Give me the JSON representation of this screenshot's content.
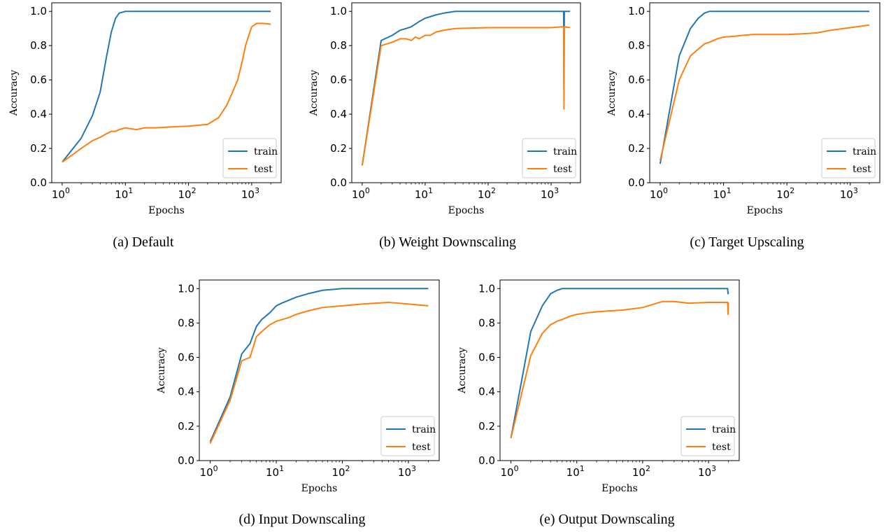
{
  "colors": {
    "train": "#1f77b4",
    "test": "#ff7f0e"
  },
  "chart_data": [
    {
      "type": "line",
      "caption": "(a) Default",
      "xlabel": "Epochs",
      "ylabel": "Accuracy",
      "xscale": "log",
      "xlim": [
        1,
        2000
      ],
      "ylim": [
        0,
        1.0
      ],
      "x_ticks": [
        1,
        10,
        100,
        1000
      ],
      "x_tick_labels": [
        [
          "10",
          "0"
        ],
        [
          "10",
          "1"
        ],
        [
          "10",
          "2"
        ],
        [
          "10",
          "3"
        ]
      ],
      "y_ticks": [
        0,
        0.2,
        0.4,
        0.6,
        0.8,
        1.0
      ],
      "y_tick_labels": [
        "0.0",
        "0.2",
        "0.4",
        "0.6",
        "0.8",
        "1.0"
      ],
      "legend": "lower-right",
      "series": [
        {
          "name": "train",
          "x": [
            1,
            2,
            3,
            4,
            5,
            6,
            7,
            8,
            9,
            10,
            20,
            100,
            1000,
            2000
          ],
          "y": [
            0.12,
            0.26,
            0.39,
            0.53,
            0.73,
            0.88,
            0.96,
            0.99,
            0.995,
            1.0,
            1.0,
            1.0,
            1.0,
            1.0
          ]
        },
        {
          "name": "test",
          "x": [
            1,
            2,
            3,
            4,
            5,
            6,
            7,
            8,
            10,
            15,
            20,
            30,
            50,
            100,
            200,
            300,
            400,
            500,
            600,
            700,
            800,
            900,
            1000,
            1200,
            1500,
            2000
          ],
          "y": [
            0.12,
            0.2,
            0.245,
            0.265,
            0.285,
            0.3,
            0.3,
            0.31,
            0.32,
            0.31,
            0.32,
            0.32,
            0.325,
            0.33,
            0.34,
            0.38,
            0.45,
            0.53,
            0.6,
            0.7,
            0.8,
            0.86,
            0.91,
            0.93,
            0.93,
            0.925
          ]
        }
      ]
    },
    {
      "type": "line",
      "caption": "(b) Weight Downscaling",
      "xlabel": "Epochs",
      "ylabel": "Accuracy",
      "xscale": "log",
      "xlim": [
        1,
        2000
      ],
      "ylim": [
        0,
        1.0
      ],
      "x_ticks": [
        1,
        10,
        100,
        1000
      ],
      "x_tick_labels": [
        [
          "10",
          "0"
        ],
        [
          "10",
          "1"
        ],
        [
          "10",
          "2"
        ],
        [
          "10",
          "3"
        ]
      ],
      "y_ticks": [
        0,
        0.2,
        0.4,
        0.6,
        0.8,
        1.0
      ],
      "y_tick_labels": [
        "0.0",
        "0.2",
        "0.4",
        "0.6",
        "0.8",
        "1.0"
      ],
      "legend": "lower-right",
      "series": [
        {
          "name": "train",
          "x": [
            1,
            2,
            3,
            4,
            5,
            6,
            8,
            10,
            15,
            20,
            30,
            100,
            1000,
            1500,
            1580,
            1600,
            1620,
            2000
          ],
          "y": [
            0.1,
            0.83,
            0.86,
            0.89,
            0.9,
            0.91,
            0.94,
            0.96,
            0.98,
            0.99,
            1.0,
            1.0,
            1.0,
            1.0,
            1.0,
            0.55,
            1.0,
            1.0
          ]
        },
        {
          "name": "test",
          "x": [
            1,
            2,
            3,
            4,
            5,
            6,
            7,
            8,
            10,
            12,
            15,
            20,
            30,
            100,
            1000,
            1500,
            1580,
            1600,
            1620,
            2000
          ],
          "y": [
            0.1,
            0.8,
            0.82,
            0.84,
            0.84,
            0.83,
            0.85,
            0.84,
            0.86,
            0.86,
            0.88,
            0.89,
            0.9,
            0.905,
            0.905,
            0.91,
            0.91,
            0.43,
            0.91,
            0.905
          ]
        }
      ]
    },
    {
      "type": "line",
      "caption": "(c) Target Upscaling",
      "xlabel": "Epochs",
      "ylabel": "Accuracy",
      "xscale": "log",
      "xlim": [
        1,
        2000
      ],
      "ylim": [
        0,
        1.0
      ],
      "x_ticks": [
        1,
        10,
        100,
        1000
      ],
      "x_tick_labels": [
        [
          "10",
          "0"
        ],
        [
          "10",
          "1"
        ],
        [
          "10",
          "2"
        ],
        [
          "10",
          "3"
        ]
      ],
      "y_ticks": [
        0,
        0.2,
        0.4,
        0.6,
        0.8,
        1.0
      ],
      "y_tick_labels": [
        "0.0",
        "0.2",
        "0.4",
        "0.6",
        "0.8",
        "1.0"
      ],
      "legend": "lower-right",
      "series": [
        {
          "name": "train",
          "x": [
            1,
            2,
            3,
            4,
            5,
            6,
            10,
            100,
            2000
          ],
          "y": [
            0.11,
            0.74,
            0.9,
            0.96,
            0.99,
            1.0,
            1.0,
            1.0,
            1.0
          ]
        },
        {
          "name": "test",
          "x": [
            1,
            2,
            3,
            4,
            5,
            6,
            8,
            10,
            15,
            20,
            30,
            50,
            100,
            200,
            300,
            500,
            1000,
            2000
          ],
          "y": [
            0.13,
            0.6,
            0.74,
            0.78,
            0.81,
            0.82,
            0.84,
            0.85,
            0.855,
            0.86,
            0.865,
            0.865,
            0.865,
            0.87,
            0.875,
            0.89,
            0.905,
            0.92
          ]
        }
      ]
    },
    {
      "type": "line",
      "caption": "(d) Input Downscaling",
      "xlabel": "Epochs",
      "ylabel": "Accuracy",
      "xscale": "log",
      "xlim": [
        1,
        2000
      ],
      "ylim": [
        0,
        1.0
      ],
      "x_ticks": [
        1,
        10,
        100,
        1000
      ],
      "x_tick_labels": [
        [
          "10",
          "0"
        ],
        [
          "10",
          "1"
        ],
        [
          "10",
          "2"
        ],
        [
          "10",
          "3"
        ]
      ],
      "y_ticks": [
        0,
        0.2,
        0.4,
        0.6,
        0.8,
        1.0
      ],
      "y_tick_labels": [
        "0.0",
        "0.2",
        "0.4",
        "0.6",
        "0.8",
        "1.0"
      ],
      "legend": "lower-right",
      "series": [
        {
          "name": "train",
          "x": [
            1,
            2,
            3,
            4,
            5,
            6,
            8,
            10,
            12,
            15,
            20,
            30,
            50,
            100,
            300,
            1000,
            2000
          ],
          "y": [
            0.11,
            0.37,
            0.62,
            0.68,
            0.78,
            0.82,
            0.86,
            0.9,
            0.915,
            0.93,
            0.95,
            0.97,
            0.99,
            1.0,
            1.0,
            1.0,
            1.0
          ]
        },
        {
          "name": "test",
          "x": [
            1,
            2,
            3,
            4,
            5,
            6,
            8,
            10,
            15,
            20,
            30,
            50,
            100,
            200,
            500,
            1000,
            2000
          ],
          "y": [
            0.1,
            0.35,
            0.58,
            0.6,
            0.72,
            0.75,
            0.79,
            0.81,
            0.83,
            0.85,
            0.87,
            0.89,
            0.9,
            0.91,
            0.92,
            0.91,
            0.9
          ]
        }
      ]
    },
    {
      "type": "line",
      "caption": "(e) Output Downscaling",
      "xlabel": "Epochs",
      "ylabel": "Accuracy",
      "xscale": "log",
      "xlim": [
        1,
        2000
      ],
      "ylim": [
        0,
        1.0
      ],
      "x_ticks": [
        1,
        10,
        100,
        1000
      ],
      "x_tick_labels": [
        [
          "10",
          "0"
        ],
        [
          "10",
          "1"
        ],
        [
          "10",
          "2"
        ],
        [
          "10",
          "3"
        ]
      ],
      "y_ticks": [
        0,
        0.2,
        0.4,
        0.6,
        0.8,
        1.0
      ],
      "y_tick_labels": [
        "0.0",
        "0.2",
        "0.4",
        "0.6",
        "0.8",
        "1.0"
      ],
      "legend": "lower-right",
      "series": [
        {
          "name": "train",
          "x": [
            1,
            2,
            3,
            4,
            5,
            6,
            7,
            10,
            100,
            1000,
            1950,
            1980,
            2000
          ],
          "y": [
            0.13,
            0.75,
            0.9,
            0.97,
            0.99,
            1.0,
            1.0,
            1.0,
            1.0,
            1.0,
            1.0,
            0.97,
            0.98
          ]
        },
        {
          "name": "test",
          "x": [
            1,
            2,
            3,
            4,
            5,
            6,
            8,
            10,
            15,
            20,
            30,
            50,
            100,
            200,
            300,
            500,
            1000,
            1950,
            1980,
            2000
          ],
          "y": [
            0.13,
            0.61,
            0.74,
            0.79,
            0.81,
            0.82,
            0.84,
            0.85,
            0.86,
            0.865,
            0.87,
            0.875,
            0.89,
            0.925,
            0.925,
            0.915,
            0.92,
            0.92,
            0.85,
            0.92
          ]
        }
      ]
    }
  ]
}
